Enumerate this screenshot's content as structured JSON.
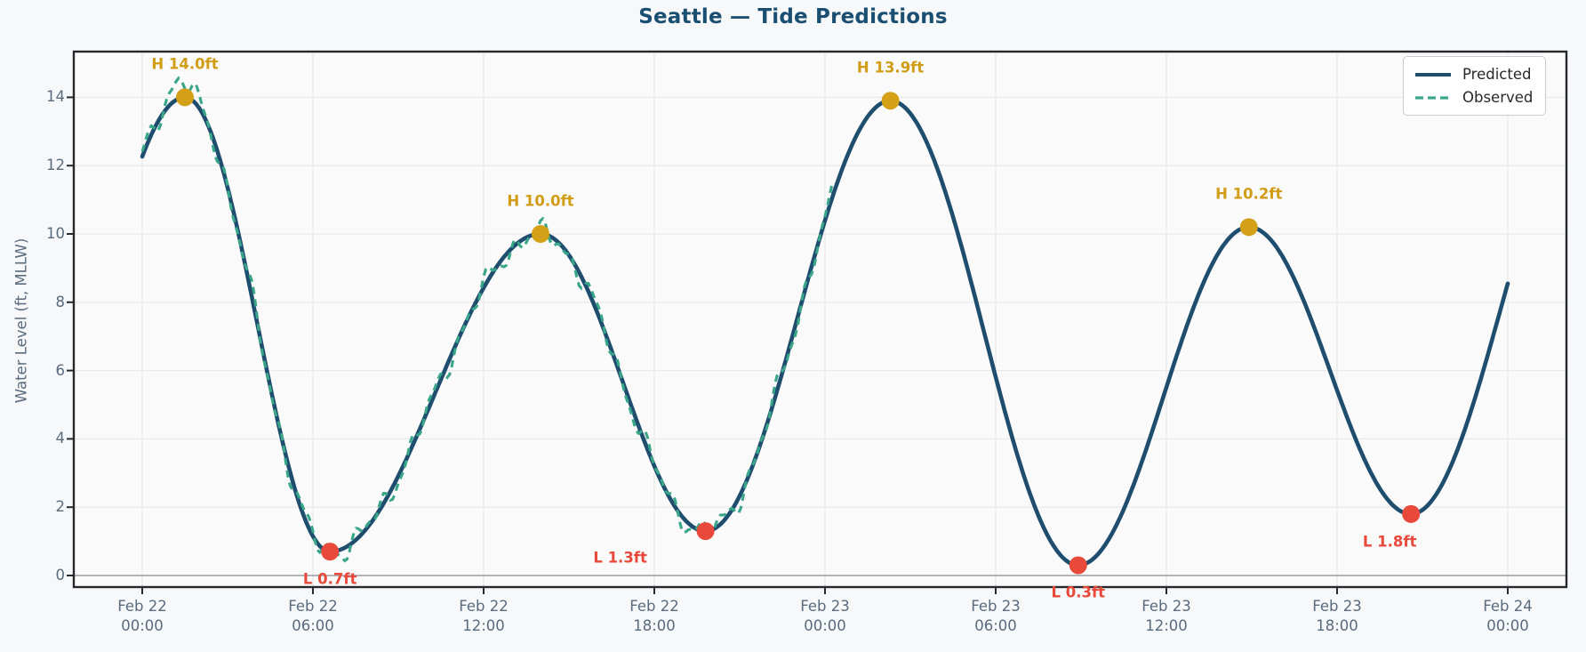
{
  "title": "Seattle — Tide Predictions",
  "ylabel": "Water Level (ft, MLLW)",
  "colors": {
    "page_background": "#f7f8fa",
    "plot_background": "#fafafa",
    "grid": "#e9eaec",
    "zero_line": "#9a9ca2",
    "spine": "#26282b",
    "title": "#1b4f72",
    "tick_label": "#5a6b7e",
    "predicted_line": "#1f4d6e",
    "observed_line": "#3aa689",
    "high_marker": "#d4a017",
    "high_label": "#d19d17",
    "low_marker": "#e8493a",
    "low_label": "#e8493a",
    "legend_border": "#c9cdd2",
    "legend_text": "#27292c"
  },
  "legend": {
    "items": [
      {
        "label": "Predicted",
        "style": "solid",
        "color": "#1f4d6e"
      },
      {
        "label": "Observed",
        "style": "dashed",
        "color": "#3aa689"
      }
    ],
    "position": "top-right"
  },
  "chart_data": {
    "type": "line",
    "title": "Seattle — Tide Predictions",
    "xlabel": "",
    "ylabel": "Water Level (ft, MLLW)",
    "grid": true,
    "legend_position": "top-right",
    "x_unit": "hours since Feb 22 00:00",
    "x_range_hours": [
      0,
      48
    ],
    "ylim": [
      -0.35,
      15.35
    ],
    "yticks": [
      0,
      2,
      4,
      6,
      8,
      10,
      12,
      14
    ],
    "x_ticks": [
      {
        "hour": 0,
        "date": "Feb 22",
        "time": "00:00"
      },
      {
        "hour": 6,
        "date": "Feb 22",
        "time": "06:00"
      },
      {
        "hour": 12,
        "date": "Feb 22",
        "time": "12:00"
      },
      {
        "hour": 18,
        "date": "Feb 22",
        "time": "18:00"
      },
      {
        "hour": 24,
        "date": "Feb 23",
        "time": "00:00"
      },
      {
        "hour": 30,
        "date": "Feb 23",
        "time": "06:00"
      },
      {
        "hour": 36,
        "date": "Feb 23",
        "time": "12:00"
      },
      {
        "hour": 42,
        "date": "Feb 23",
        "time": "18:00"
      },
      {
        "hour": 48,
        "date": "Feb 24",
        "time": "00:00"
      }
    ],
    "series": [
      {
        "name": "Predicted",
        "style": "solid",
        "color": "#1f4d6e",
        "start_value_ft": 12.3,
        "end_value_ft": 8.5,
        "control_points": [
          {
            "hour": -4.9,
            "value": 0.6,
            "virtual": true
          },
          {
            "hour": 1.5,
            "value": 14.0,
            "type": "H"
          },
          {
            "hour": 6.6,
            "value": 0.7,
            "type": "L"
          },
          {
            "hour": 14.0,
            "value": 10.0,
            "type": "H"
          },
          {
            "hour": 19.8,
            "value": 1.3,
            "type": "L"
          },
          {
            "hour": 26.3,
            "value": 13.9,
            "type": "H"
          },
          {
            "hour": 32.9,
            "value": 0.3,
            "type": "L"
          },
          {
            "hour": 38.9,
            "value": 10.2,
            "type": "H"
          },
          {
            "hour": 44.6,
            "value": 1.8,
            "type": "L"
          },
          {
            "hour": 50.9,
            "value": 13.8,
            "virtual": true
          }
        ]
      },
      {
        "name": "Observed",
        "style": "dashed",
        "color": "#3aa689",
        "tracks": "Predicted",
        "hour_range": [
          0,
          24.3
        ],
        "noise_amplitude_ft": 0.35,
        "first_peak_overshoot_ft": 0.5
      }
    ],
    "annotations": [
      {
        "label": "H 14.0ft",
        "type": "high",
        "hour": 1.5,
        "value": 14.0,
        "label_offset": [
          0,
          -37
        ]
      },
      {
        "label": "L 0.7ft",
        "type": "low",
        "hour": 6.6,
        "value": 0.7,
        "label_offset": [
          0,
          31
        ]
      },
      {
        "label": "H 10.0ft",
        "type": "high",
        "hour": 14.0,
        "value": 10.0,
        "label_offset": [
          0,
          -37
        ]
      },
      {
        "label": "L 1.3ft",
        "type": "low",
        "hour": 19.8,
        "value": 1.3,
        "label_offset": [
          -96,
          30
        ]
      },
      {
        "label": "H 13.9ft",
        "type": "high",
        "hour": 26.3,
        "value": 13.9,
        "label_offset": [
          0,
          -37
        ]
      },
      {
        "label": "L 0.3ft",
        "type": "low",
        "hour": 32.9,
        "value": 0.3,
        "label_offset": [
          0,
          31
        ]
      },
      {
        "label": "H 10.2ft",
        "type": "high",
        "hour": 38.9,
        "value": 10.2,
        "label_offset": [
          0,
          -37
        ]
      },
      {
        "label": "L 1.8ft",
        "type": "low",
        "hour": 44.6,
        "value": 1.8,
        "label_offset": [
          -24,
          31
        ]
      }
    ]
  }
}
